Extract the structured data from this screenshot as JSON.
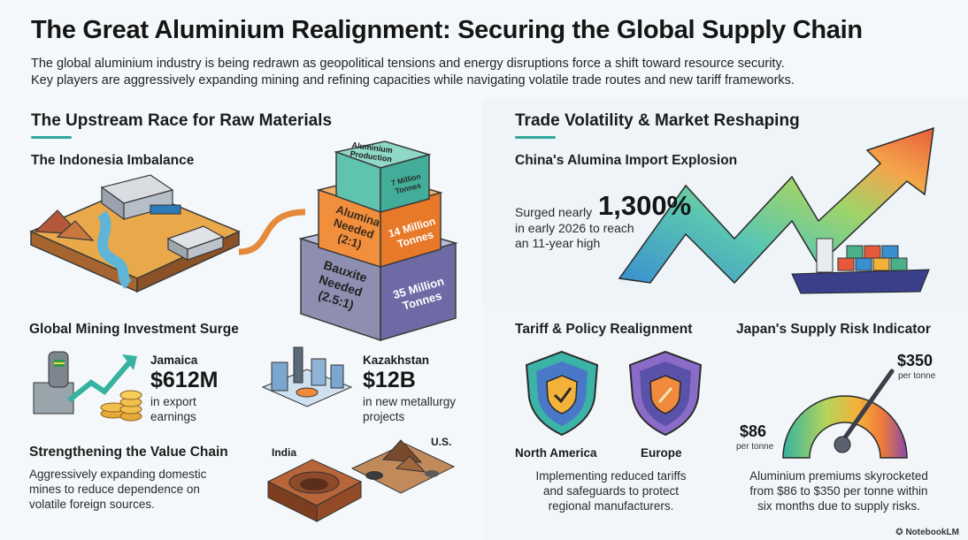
{
  "header": {
    "title": "The Great Aluminium Realignment: Securing the Global Supply Chain",
    "intro_line1": "The global aluminium industry is being redrawn as geopolitical tensions and energy disruptions force a shift toward resource security.",
    "intro_line2": "Key players are aggressively expanding mining and refining capacities while navigating volatile trade routes and new tariff frameworks."
  },
  "left": {
    "title": "The Upstream Race for Raw Materials",
    "indonesia": {
      "heading": "The Indonesia Imbalance",
      "tiers": [
        {
          "label": "Aluminium Production",
          "value": "7 Million Tonnes"
        },
        {
          "label": "Alumina Needed (2:1)",
          "value": "14 Million Tonnes"
        },
        {
          "label": "Bauxite Needed (2.5:1)",
          "value": "35 Million Tonnes"
        }
      ]
    },
    "investment": {
      "heading": "Global Mining Investment Surge",
      "jamaica": {
        "country": "Jamaica",
        "amount": "$612M",
        "desc_line1": "in export",
        "desc_line2": "earnings"
      },
      "kazakhstan": {
        "country": "Kazakhstan",
        "amount": "$12B",
        "desc_line1": "in new metallurgy",
        "desc_line2": "projects"
      }
    },
    "value_chain": {
      "heading": "Strengthening the Value Chain",
      "line1": "Aggressively expanding domestic",
      "line2": "mines to reduce dependence on",
      "line3": "volatile foreign sources.",
      "india": "India",
      "us": "U.S."
    }
  },
  "right": {
    "title": "Trade Volatility & Market Reshaping",
    "china": {
      "heading": "China's Alumina Import Explosion",
      "surged": "Surged nearly",
      "pct": "1,300%",
      "line2": "in early 2026 to reach",
      "line3": "an 11-year high"
    },
    "tariff": {
      "heading": "Tariff & Policy Realignment",
      "na": "North America",
      "eu": "Europe",
      "line1": "Implementing reduced tariffs",
      "line2": "and safeguards to protect",
      "line3": "regional manufacturers."
    },
    "japan": {
      "heading": "Japan's Supply Risk Indicator",
      "high": "$350",
      "high_unit": "per tonne",
      "low": "$86",
      "low_unit": "per tonne",
      "line1": "Aluminium premiums skyrocketed",
      "line2": "from $86 to $350 per tonne within",
      "line3": "six months due to supply risks."
    }
  },
  "footer": {
    "brand": "NotebookLM"
  },
  "colors": {
    "accent": "#2fa89b",
    "teal": "#35b3a0",
    "orange": "#f08a3c",
    "purple": "#6f68b8"
  }
}
